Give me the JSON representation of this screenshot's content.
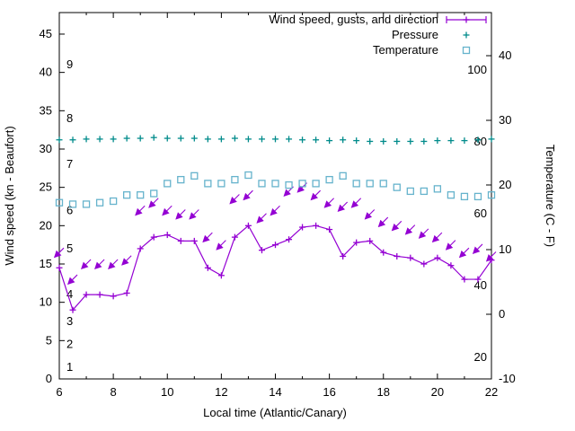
{
  "chart_data": {
    "type": "line",
    "title": "",
    "xlabel": "Local time (Atlantic/Canary)",
    "ylabel_left": "Wind speed (kn - Beaufort)",
    "ylabel_right": "Temperature (C - F)",
    "x_range": [
      6,
      22
    ],
    "x_ticks": [
      6,
      8,
      10,
      12,
      14,
      16,
      18,
      20,
      22
    ],
    "x_minor_step": 1,
    "y_left_range": [
      0,
      47.81
    ],
    "y_left_ticks": [
      0,
      5,
      10,
      15,
      20,
      25,
      30,
      35,
      40,
      45
    ],
    "y_right_range": [
      -10,
      46.67
    ],
    "y_right_ticks": [
      -10,
      0,
      10,
      20,
      30,
      40
    ],
    "grid": false,
    "legend_position": "top-right-inside",
    "legend": [
      {
        "label": "Wind speed, gusts, and direction",
        "series": "wind_speed",
        "sample": "errorline-plus"
      },
      {
        "label": "Pressure",
        "series": "pressure",
        "sample": "plus"
      },
      {
        "label": "Temperature",
        "series": "temperature",
        "sample": "open-square"
      }
    ],
    "beaufort_labels": [
      {
        "label": "1",
        "kn": 1.5
      },
      {
        "label": "2",
        "kn": 4.5
      },
      {
        "label": "3",
        "kn": 7.5
      },
      {
        "label": "4",
        "kn": 11
      },
      {
        "label": "5",
        "kn": 17
      },
      {
        "label": "6",
        "kn": 22
      },
      {
        "label": "7",
        "kn": 28
      },
      {
        "label": "8",
        "kn": 34
      },
      {
        "label": "9",
        "kn": 41
      }
    ],
    "fahrenheit_labels": [
      {
        "label": "20",
        "f": 20
      },
      {
        "label": "40",
        "f": 40
      },
      {
        "label": "60",
        "f": 60
      },
      {
        "label": "80",
        "f": 80
      },
      {
        "label": "100",
        "f": 100
      }
    ],
    "x": [
      6,
      6.5,
      7,
      7.5,
      8,
      8.5,
      9,
      9.5,
      10,
      10.5,
      11,
      11.5,
      12,
      12.5,
      13,
      13.5,
      14,
      14.5,
      15,
      15.5,
      16,
      16.5,
      17,
      17.5,
      18,
      18.5,
      19,
      19.5,
      20,
      20.5,
      21,
      21.5,
      22
    ],
    "series": [
      {
        "name": "wind_speed",
        "color": "#9400d3",
        "marker": "plus",
        "line": true,
        "values": [
          14.5,
          9,
          11,
          11,
          10.8,
          11.2,
          17,
          18.5,
          18.8,
          18,
          18,
          14.5,
          13.5,
          18.5,
          20,
          16.8,
          17.5,
          18.2,
          19.8,
          20,
          19.5,
          16,
          17.8,
          18,
          16.5,
          16,
          15.8,
          15,
          15.8,
          14.8,
          13,
          13,
          15.5
        ]
      },
      {
        "name": "wind_gusts_direction",
        "color": "#9400d3",
        "marker": "arrow-down-left",
        "line": false,
        "values": [
          16.5,
          13,
          15,
          15,
          15,
          15.5,
          22,
          23,
          22,
          21.5,
          21.5,
          18.5,
          17.5,
          23.5,
          24,
          21,
          22,
          24.5,
          25,
          24,
          23,
          22.5,
          23,
          21.5,
          20.5,
          20,
          19.5,
          19,
          18.5,
          17.5,
          16.5,
          17,
          16
        ]
      },
      {
        "name": "pressure",
        "color": "#008b8b",
        "marker": "plus",
        "line": false,
        "values": [
          31.2,
          31.2,
          31.3,
          31.3,
          31.3,
          31.4,
          31.4,
          31.5,
          31.4,
          31.4,
          31.4,
          31.3,
          31.3,
          31.4,
          31.3,
          31.3,
          31.3,
          31.3,
          31.2,
          31.2,
          31.1,
          31.2,
          31.1,
          31,
          31,
          31,
          31,
          31,
          31.1,
          31.1,
          31.1,
          31.2,
          31.3
        ]
      },
      {
        "name": "temperature",
        "color": "#66b3cc",
        "marker": "open-square",
        "line": false,
        "values": [
          23,
          22.8,
          22.8,
          23,
          23.2,
          24,
          24,
          24.2,
          25.5,
          26,
          26.5,
          25.5,
          25.5,
          26,
          26.6,
          25.5,
          25.5,
          25.3,
          25.5,
          25.5,
          26,
          26.5,
          25.5,
          25.5,
          25.5,
          25,
          24.5,
          24.5,
          24.8,
          24,
          23.8,
          23.8,
          24
        ]
      }
    ]
  }
}
